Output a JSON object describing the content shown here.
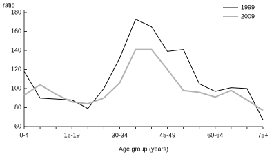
{
  "chart_data": {
    "type": "line",
    "y_axis_label": "ratio",
    "x_axis_label": "Age group (years)",
    "categories": [
      "0-4",
      null,
      null,
      "15-19",
      null,
      null,
      "30-34",
      null,
      null,
      "45-49",
      null,
      null,
      "60-64",
      null,
      null,
      "75+"
    ],
    "series": [
      {
        "name": "1999",
        "color": "#000000",
        "values": [
          118,
          90,
          89,
          88,
          79,
          100,
          132,
          173,
          165,
          139,
          141,
          105,
          97,
          101,
          100,
          67
        ]
      },
      {
        "name": "2009",
        "color": "#b3b3b3",
        "values": [
          93,
          104,
          94,
          86,
          84,
          90,
          106,
          141,
          141,
          120,
          98,
          96,
          91,
          98,
          88,
          77
        ]
      }
    ],
    "ylim": [
      60,
      180
    ],
    "yticks": [
      60,
      80,
      100,
      120,
      140,
      160,
      180
    ],
    "legend": "upper right"
  }
}
